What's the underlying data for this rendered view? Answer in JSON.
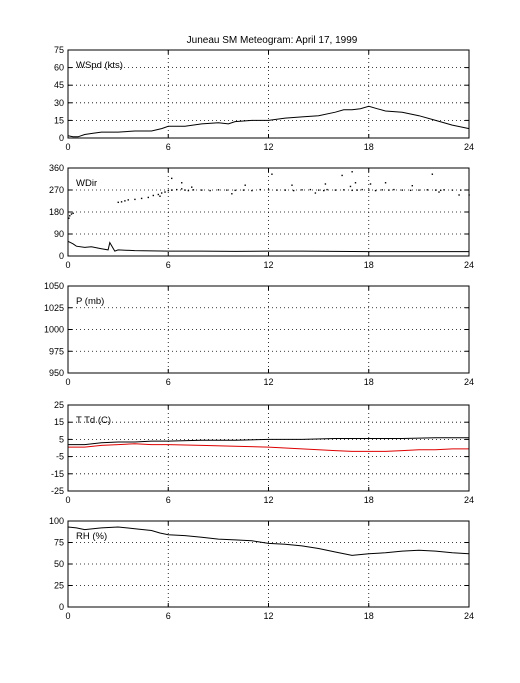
{
  "figure": {
    "title": "Juneau SM Meteogram:      April 17, 1999"
  },
  "chart_data": [
    {
      "type": "line",
      "label": "WSpd (kts)",
      "xlim": [
        0,
        24
      ],
      "xticks": [
        0,
        6,
        12,
        18,
        24
      ],
      "ylim": [
        0,
        75
      ],
      "yticks": [
        0,
        15,
        30,
        45,
        60,
        75
      ],
      "grid": true,
      "series": [
        {
          "color": "#000000",
          "x": [
            0,
            0.3,
            0.6,
            1,
            1.5,
            2,
            3,
            4,
            5,
            5.6,
            6,
            7,
            8,
            9,
            9.6,
            10,
            11,
            12,
            13,
            14,
            15,
            16,
            16.5,
            17,
            17.5,
            18,
            18.5,
            19,
            20,
            21,
            22,
            23,
            24
          ],
          "y": [
            2,
            1,
            1,
            3,
            4,
            5,
            5,
            6,
            6,
            8,
            10,
            10,
            12,
            13,
            12,
            14,
            15,
            15,
            17,
            18,
            19,
            22,
            24,
            24,
            25,
            27,
            25,
            23,
            22,
            19,
            15,
            11,
            8
          ]
        }
      ]
    },
    {
      "type": "scatter",
      "label": "WDir",
      "xlim": [
        0,
        24
      ],
      "xticks": [
        0,
        6,
        12,
        18,
        24
      ],
      "ylim": [
        0,
        360
      ],
      "yticks": [
        0,
        90,
        180,
        270,
        360
      ],
      "grid": true,
      "series": [
        {
          "color": "#000000",
          "mode": "line",
          "x": [
            0,
            0.3,
            0.5,
            1,
            1.4,
            2,
            2.4,
            2.5,
            2.7,
            2.8,
            3,
            4,
            6,
            8,
            10,
            12,
            14,
            16,
            18,
            20,
            22,
            24
          ],
          "y": [
            60,
            50,
            40,
            35,
            38,
            30,
            25,
            55,
            32,
            20,
            25,
            22,
            20,
            20,
            19,
            20,
            20,
            19,
            18,
            18,
            18,
            18
          ]
        },
        {
          "color": "#000000",
          "mode": "points",
          "x": [
            0.05,
            0.1,
            0.2,
            0.3,
            3.0,
            3.2,
            3.4,
            3.6,
            4.0,
            4.4,
            4.8,
            5.1,
            5.4,
            5.6,
            5.8,
            6.0,
            6.2,
            6.5,
            6.8,
            7.0,
            7.2,
            7.5,
            8.0,
            8.5,
            9.0,
            9.5,
            10.0,
            10.5,
            11.0,
            11.5,
            12.0,
            12.5,
            13.0,
            13.5,
            14.0,
            14.5,
            15.0,
            15.3,
            15.5,
            16.0,
            16.5,
            17.0,
            17.3,
            17.6,
            18.0,
            18.4,
            18.8,
            19.2,
            19.5,
            20.0,
            20.5,
            21.0,
            21.5,
            22.0,
            22.3,
            22.5,
            23.0,
            23.5,
            24.0,
            6.2,
            6.8,
            9.8,
            12.2,
            15.4,
            16.4,
            17.0,
            17.2,
            18.1,
            21.8,
            23.4,
            5.5,
            7.4,
            10.6,
            13.4,
            14.8,
            16.9,
            19.0,
            20.6,
            22.2
          ],
          "y": [
            155,
            165,
            172,
            175,
            220,
            222,
            226,
            230,
            232,
            236,
            240,
            248,
            252,
            258,
            262,
            268,
            270,
            272,
            275,
            270,
            268,
            271,
            270,
            268,
            271,
            270,
            269,
            270,
            268,
            272,
            271,
            270,
            270,
            268,
            271,
            272,
            270,
            268,
            272,
            270,
            271,
            269,
            270,
            272,
            270,
            268,
            271,
            270,
            272,
            270,
            269,
            270,
            271,
            270,
            269,
            271,
            270,
            270,
            250,
            318,
            300,
            255,
            335,
            295,
            330,
            345,
            300,
            295,
            335,
            250,
            245,
            282,
            290,
            290,
            258,
            285,
            300,
            288,
            262
          ]
        }
      ]
    },
    {
      "type": "line",
      "label": "P (mb)",
      "xlim": [
        0,
        24
      ],
      "xticks": [
        0,
        6,
        12,
        18,
        24
      ],
      "ylim": [
        950,
        1050
      ],
      "yticks": [
        950,
        975,
        1000,
        1025,
        1050
      ],
      "grid": true,
      "series": []
    },
    {
      "type": "line",
      "label": "T Td (C)",
      "xlim": [
        0,
        24
      ],
      "xticks": [
        0,
        6,
        12,
        18,
        24
      ],
      "ylim": [
        -25,
        25
      ],
      "yticks": [
        -25,
        -15,
        -5,
        5,
        15,
        25
      ],
      "grid": true,
      "series": [
        {
          "color": "#000000",
          "x": [
            0,
            1,
            2,
            3,
            4,
            5,
            6,
            8,
            10,
            12,
            14,
            16,
            18,
            20,
            22,
            24
          ],
          "y": [
            2,
            2,
            3,
            3.5,
            3.5,
            4,
            4,
            4.5,
            4.5,
            5,
            5,
            5.5,
            5.5,
            5.5,
            6,
            6
          ]
        },
        {
          "color": "#dd0000",
          "x": [
            0,
            1,
            2,
            3,
            4,
            5,
            6,
            8,
            10,
            12,
            14,
            15,
            16,
            17,
            18,
            19,
            20,
            21,
            22,
            23,
            24
          ],
          "y": [
            0.5,
            0.5,
            1.5,
            2,
            2.5,
            2,
            2,
            1.5,
            1,
            0.5,
            -0.5,
            -1,
            -1.5,
            -2,
            -2,
            -2,
            -1.5,
            -1,
            -1,
            -0.5,
            -0.5
          ]
        }
      ]
    },
    {
      "type": "line",
      "label": "RH (%)",
      "xlim": [
        0,
        24
      ],
      "xticks": [
        0,
        6,
        12,
        18,
        24
      ],
      "ylim": [
        0,
        100
      ],
      "yticks": [
        0,
        25,
        50,
        75,
        100
      ],
      "grid": true,
      "series": [
        {
          "color": "#000000",
          "x": [
            0,
            0.5,
            1,
            2,
            3,
            4,
            5,
            5.5,
            6,
            7,
            8,
            9,
            10,
            11,
            12,
            13,
            14,
            15,
            16,
            17,
            18,
            19,
            20,
            21,
            22,
            23,
            24
          ],
          "y": [
            93,
            92,
            90,
            92,
            93,
            91,
            89,
            86,
            84,
            83,
            81,
            79,
            78,
            77,
            74,
            73,
            71,
            68,
            64,
            60,
            62,
            63,
            65,
            66,
            65,
            63,
            62
          ]
        }
      ]
    }
  ]
}
